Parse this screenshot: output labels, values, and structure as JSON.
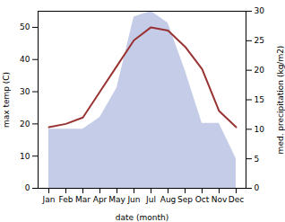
{
  "chart_data": {
    "type": "line",
    "xlabel": "date (month)",
    "ylabel": "max temp (C)",
    "y2label": "med. precipitation (kg/m2)",
    "categories": [
      "Jan",
      "Feb",
      "Mar",
      "Apr",
      "May",
      "Jun",
      "Jul",
      "Aug",
      "Sep",
      "Oct",
      "Nov",
      "Dec"
    ],
    "series": [
      {
        "type": "area",
        "axis": "y2",
        "color": "#c5cce8",
        "values": [
          10,
          10,
          10,
          12,
          17,
          29,
          30,
          28,
          20,
          11,
          11,
          5
        ]
      },
      {
        "type": "line",
        "color": "#993333",
        "values": [
          19,
          20,
          22,
          30,
          38,
          46,
          50,
          49,
          44,
          37,
          24,
          19
        ]
      }
    ],
    "ylim": [
      0,
      55
    ],
    "yticks": [
      0,
      10,
      20,
      30,
      40,
      50
    ],
    "y2lim": [
      0,
      30
    ],
    "y2ticks": [
      0,
      5,
      10,
      15,
      20,
      25,
      30
    ]
  }
}
